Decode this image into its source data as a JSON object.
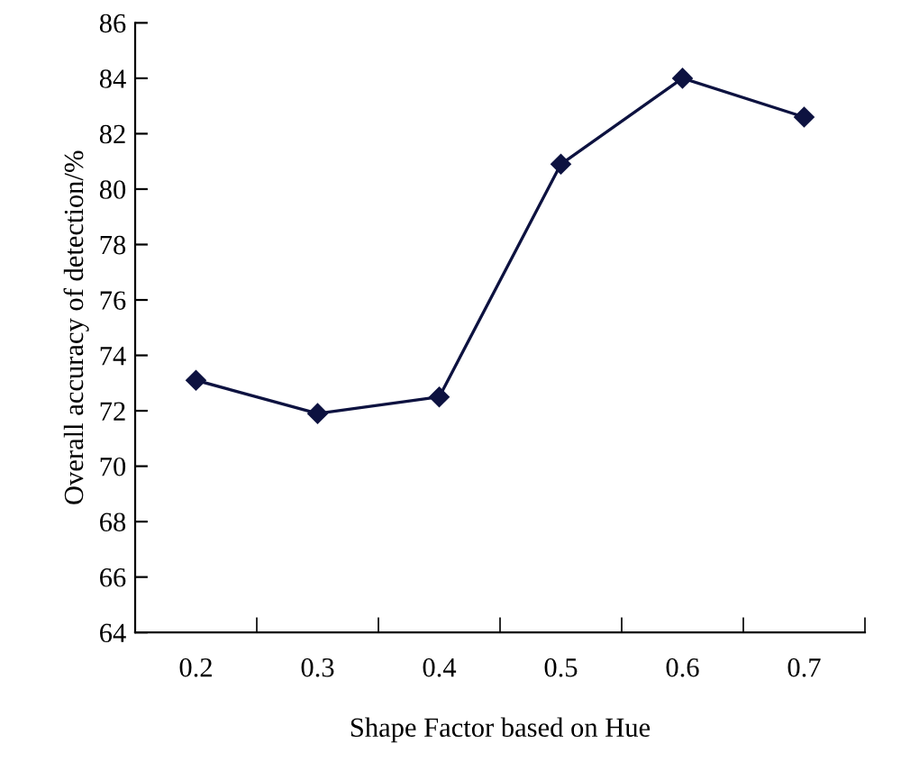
{
  "chart_data": {
    "type": "line",
    "xlabel": "Shape Factor based on Hue",
    "ylabel": "Overall accuracy of detection/%",
    "categories": [
      "0.2",
      "0.3",
      "0.4",
      "0.5",
      "0.6",
      "0.7"
    ],
    "series": [
      {
        "color": "#0d1240",
        "values": [
          73.1,
          71.9,
          72.5,
          80.9,
          84.0,
          82.6
        ]
      }
    ],
    "ylim": [
      64,
      86
    ],
    "yticks": [
      64,
      66,
      68,
      70,
      72,
      74,
      76,
      78,
      80,
      82,
      84,
      86
    ],
    "marker": "diamond",
    "line_style": "solid",
    "grid": false
  }
}
